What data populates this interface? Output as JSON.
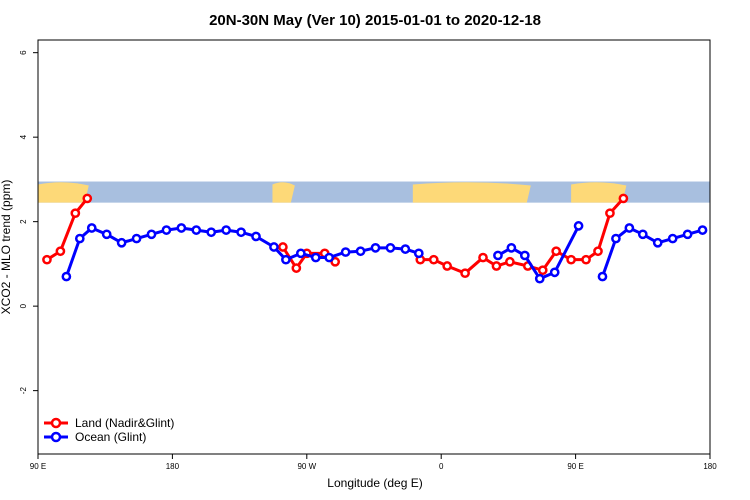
{
  "chart_data": {
    "type": "line",
    "title": "20N-30N May (Ver 10)   2015-01-01 to 2020-12-18",
    "xlabel": "Longitude (deg E)",
    "ylabel": "XCO2 - MLO trend (ppm)",
    "xlim": [
      90,
      540
    ],
    "ylim": [
      -3.5,
      6.3
    ],
    "x_ticks": [
      {
        "value": 90,
        "label": "90 E"
      },
      {
        "value": 180,
        "label": "180"
      },
      {
        "value": 270,
        "label": "90 W"
      },
      {
        "value": 360,
        "label": "0"
      },
      {
        "value": 450,
        "label": "90 E"
      },
      {
        "value": 540,
        "label": "180"
      }
    ],
    "y_ticks": [
      {
        "value": -2,
        "label": "-2"
      },
      {
        "value": 0,
        "label": "0"
      },
      {
        "value": 2,
        "label": "2"
      },
      {
        "value": 4,
        "label": "4"
      },
      {
        "value": 6,
        "label": "6"
      }
    ],
    "map_band": {
      "y_range": [
        2.45,
        2.95
      ],
      "ocean_color": "#a8bfdf",
      "land_color": "#fdd978"
    },
    "series": [
      {
        "name": "Land (Nadir&Glint)",
        "color": "#ff0000",
        "segments": [
          [
            [
              96,
              1.1
            ],
            [
              105,
              1.3
            ],
            [
              115,
              2.2
            ],
            [
              123,
              2.55
            ]
          ],
          [
            [
              254,
              1.4
            ],
            [
              263,
              0.9
            ],
            [
              270,
              1.25
            ],
            [
              282,
              1.25
            ],
            [
              289,
              1.05
            ]
          ],
          [
            [
              346,
              1.1
            ],
            [
              355,
              1.1
            ],
            [
              364,
              0.95
            ],
            [
              376,
              0.78
            ],
            [
              388,
              1.15
            ],
            [
              397,
              0.95
            ],
            [
              406,
              1.05
            ],
            [
              418,
              0.95
            ],
            [
              428,
              0.85
            ],
            [
              437,
              1.3
            ],
            [
              447,
              1.1
            ],
            [
              457,
              1.1
            ],
            [
              465,
              1.3
            ],
            [
              473,
              2.2
            ],
            [
              482,
              2.55
            ]
          ]
        ]
      },
      {
        "name": "Ocean (Glint)",
        "color": "#0000ff",
        "segments": [
          [
            [
              109,
              0.7
            ],
            [
              118,
              1.6
            ],
            [
              126,
              1.85
            ],
            [
              136,
              1.7
            ],
            [
              146,
              1.5
            ],
            [
              156,
              1.6
            ],
            [
              166,
              1.7
            ],
            [
              176,
              1.8
            ],
            [
              186,
              1.85
            ],
            [
              196,
              1.8
            ],
            [
              206,
              1.75
            ],
            [
              216,
              1.8
            ],
            [
              226,
              1.75
            ],
            [
              236,
              1.65
            ],
            [
              248,
              1.4
            ],
            [
              256,
              1.1
            ],
            [
              266,
              1.25
            ],
            [
              276,
              1.15
            ],
            [
              285,
              1.15
            ],
            [
              296,
              1.28
            ],
            [
              306,
              1.3
            ],
            [
              316,
              1.38
            ],
            [
              326,
              1.38
            ],
            [
              336,
              1.35
            ],
            [
              345,
              1.25
            ]
          ],
          [
            [
              398,
              1.2
            ],
            [
              407,
              1.38
            ],
            [
              416,
              1.2
            ],
            [
              426,
              0.65
            ],
            [
              436,
              0.8
            ],
            [
              452,
              1.9
            ]
          ],
          [
            [
              468,
              0.7
            ],
            [
              477,
              1.6
            ],
            [
              486,
              1.85
            ],
            [
              495,
              1.7
            ],
            [
              505,
              1.5
            ],
            [
              515,
              1.6
            ],
            [
              525,
              1.7
            ],
            [
              535,
              1.8
            ]
          ]
        ]
      }
    ]
  }
}
